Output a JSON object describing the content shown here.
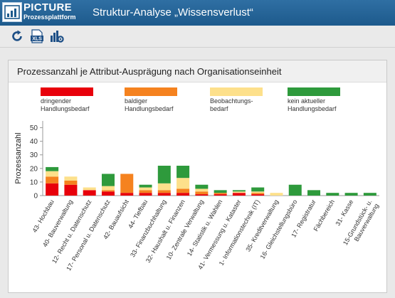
{
  "app": {
    "logo_title": "PICTURE",
    "logo_subtitle": "Prozessplattform",
    "window_title": "Struktur-Analyse „Wissensverlust“"
  },
  "toolbar": {
    "buttons": [
      {
        "icon": "refresh-icon"
      },
      {
        "icon": "xls-export-icon",
        "label": "XLS"
      },
      {
        "icon": "settings-chart-icon"
      }
    ]
  },
  "colors": {
    "dringend": "#e8000b",
    "baldig": "#f5821f",
    "beobachtung": "#fde08b",
    "kein": "#2e9a3c",
    "header": "#1d5a8c"
  },
  "chart_data": {
    "type": "bar",
    "stacked": true,
    "title": "Prozessanzahl je Attribut-Ausprägung nach Organisationseinheit",
    "ylabel": "Prozessanzahl",
    "ylim": [
      0,
      55
    ],
    "yticks": [
      0,
      10,
      20,
      30,
      40,
      50
    ],
    "grid": false,
    "legend_position": "top",
    "categories": [
      "43- Hochbau",
      "40- Bauverwaltung",
      "12- Recht u. Datenschutz",
      "17- Personal u. Datenschutz",
      "42- Bauaufsicht",
      "44- Tiefbau",
      "33- Finanzbuchhaltung",
      "32- Haushalt u. Finanzen",
      "10- Zentrale Verwaltung",
      "14- Statistik u. Wahlen",
      "41- Vermessung u. Kataster",
      "1- Informationstechnik (IT)",
      "35- Kreditverwaltung",
      "16- Gleichstellungsbüro",
      "17- Registratur",
      "Fächbereich",
      "31- Kasse",
      "15-Grundstück- u. Bauverwaltung"
    ],
    "series": [
      {
        "name": "dringender Handlungsbedarf",
        "color": "#e8000b",
        "values": [
          9,
          8,
          4,
          3,
          2,
          2,
          2,
          2,
          1,
          1,
          2,
          1,
          0,
          0,
          0,
          0,
          0,
          0
        ]
      },
      {
        "name": "baldiger Handlungsbedarf",
        "color": "#f5821f",
        "values": [
          5,
          3,
          0,
          1,
          14,
          2,
          2,
          3,
          2,
          1,
          0,
          1,
          0,
          0,
          0,
          0,
          0,
          0
        ]
      },
      {
        "name": "Beobachtungs-bedarf",
        "color": "#fde08b",
        "values": [
          4,
          3,
          2,
          3,
          0,
          2,
          5,
          8,
          2,
          0,
          1,
          1,
          2,
          0,
          0,
          0,
          0,
          0
        ]
      },
      {
        "name": "kein aktueller Handlungsbedarf",
        "color": "#2e9a3c",
        "values": [
          3,
          0,
          0,
          9,
          0,
          2,
          13,
          9,
          3,
          2,
          1,
          3,
          0,
          8,
          4,
          2,
          2,
          2
        ]
      }
    ],
    "legend_lines": [
      [
        "dringender",
        "Handlungsbedarf"
      ],
      [
        "baldiger",
        "Handlungsbedarf"
      ],
      [
        "Beobachtungs-",
        "bedarf"
      ],
      [
        "kein aktueller",
        "Handlungsbedarf"
      ]
    ],
    "xtick_lines": [
      [
        "43- Hochbau"
      ],
      [
        "40- Bauverwaltung"
      ],
      [
        "12- Recht u. Datenschutz"
      ],
      [
        "17- Personal u. Datenschutz"
      ],
      [
        "42- Bauaufsicht"
      ],
      [
        "44- Tiefbau"
      ],
      [
        "33- Finanzbuchhaltung"
      ],
      [
        "32- Haushalt u. Finanzen"
      ],
      [
        "10- Zentrale Verwaltung"
      ],
      [
        "14- Statistik u. Wahlen"
      ],
      [
        "41- Vermessung u. Kataster"
      ],
      [
        "1- Informationstechnik (IT)"
      ],
      [
        "35- Kreditverwaltung"
      ],
      [
        "16- Gleichstellungsbüro"
      ],
      [
        "17- Registratur"
      ],
      [
        "Fächbereich"
      ],
      [
        "31- Kasse"
      ],
      [
        "15-Grundstück- u.",
        "Bauverwaltung"
      ]
    ]
  }
}
